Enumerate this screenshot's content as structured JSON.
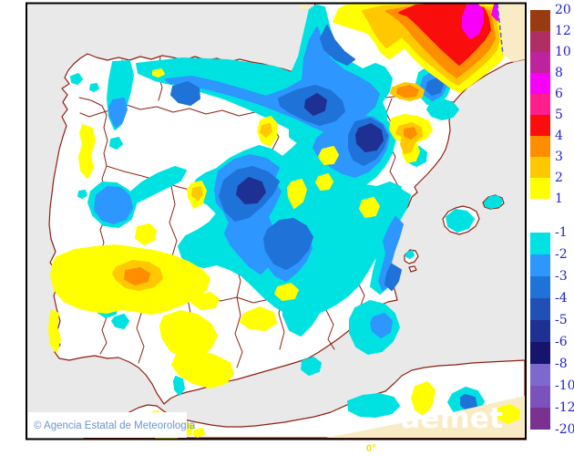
{
  "map": {
    "credit_text": "© Agencia Estatal de Meteorología",
    "watermark_text": "aemet",
    "longitude_label": "0°"
  },
  "colorbar": {
    "label_color": "#2222CC",
    "positive_labels": [
      "20",
      "12",
      "10",
      "8",
      "6",
      "5",
      "4",
      "3",
      "2",
      "1"
    ],
    "positive_colors": [
      "#993B10",
      "#B12E62",
      "#BE239E",
      "#F800F8",
      "#FF1E8C",
      "#FA0D0D",
      "#FF8D00",
      "#FFC800",
      "#FFFF00"
    ],
    "negative_labels": [
      "-1",
      "-2",
      "-3",
      "-4",
      "-5",
      "-6",
      "-8",
      "-10",
      "-12",
      "-20"
    ],
    "negative_colors": [
      "#00E2E2",
      "#2D96FF",
      "#1F72D8",
      "#2050B4",
      "#1E3192",
      "#16156E",
      "#7D68CE",
      "#7B52BC",
      "#7B3190"
    ]
  },
  "palette": {
    "sea": "#E9E9E9",
    "land": "#FFFFFF",
    "out_of_domain": "#F9ECC5",
    "border_line": "#8F2012",
    "frame": "#000000",
    "credit_color": "#6F93D0",
    "watermark_color": "#FFFFFF",
    "domain_edge": "#4466DD",
    "lon_label": "#F2DE00",
    "cyan": "#00E2E2",
    "blue_light": "#2D96FF",
    "blue_mid": "#1F72D8",
    "navy": "#1E3192",
    "yellow": "#FFFF00",
    "gold": "#FFC800",
    "orange": "#FF8D00",
    "red": "#FA0D0D",
    "magenta": "#F800F8"
  }
}
